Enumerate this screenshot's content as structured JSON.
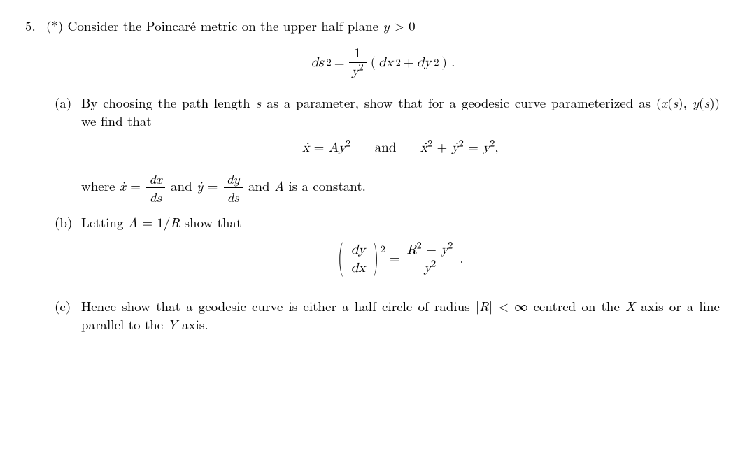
{
  "problem": {
    "number": "5.",
    "star": "(*)",
    "intro": "Consider the Poincaré metric on the upper half plane",
    "intro_cond_html": "<span class='ital'>y</span> &gt; 0",
    "metric_eq_html": "<span class='eqline'><span class='ital'>ds</span><sup>2</sup> = <span class='frac'><span class='num'>1</span><span class='den'><span class='ital'>y</span><sup>2</sup></span></span> (<span class='ital'>dx</span><sup>2</sup> + <span class='ital'>dy</span><sup>2</sup>) .</span>",
    "parts": {
      "a": {
        "label": "(a)",
        "text_html": "By choosing the path length <span class='ital'>s</span> as a parameter, show that for a geodesic curve parameterized as (<span class='ital'>x</span>(<span class='ital'>s</span>), <span class='ital'>y</span>(<span class='ital'>s</span>)) we find that",
        "eq_html": "<span class='ital'>ẋ</span> = <span class='ital'>Ay</span><sup>2</sup> <span class='gap'></span> and <span class='gap'></span> <span class='ital'>ẋ</span><sup>2</sup> + <span class='ital'>ẏ</span><sup>2</sup> = <span class='ital'>y</span><sup>2</sup>,",
        "where_html": "where <span class='ital'>ẋ</span> = <span class='frac'><span class='num'><span class='ital'>dx</span></span><span class='den'><span class='ital'>ds</span></span></span> and <span class='ital'>ẏ</span> = <span class='frac'><span class='num'><span class='ital'>dy</span></span><span class='den'><span class='ital'>ds</span></span></span> and <span class='ital'>A</span> is a constant."
      },
      "b": {
        "label": "(b)",
        "text_html": "Letting <span class='ital'>A</span> = 1/<span class='ital'>R</span> show that",
        "eq_html": "<span class='eqline'><span class='lp'>(</span><span class='frac'><span class='num'><span class='ital'>dy</span></span><span class='den'><span class='ital'>dx</span></span></span><span class='lp'>)</span><sup style='position:relative; top:-14px; left:-2px'>2</sup> = <span class='frac'><span class='num'><span class='ital'>R</span><sup>2</sup> − <span class='ital'>y</span><sup>2</sup></span><span class='den'><span class='ital'>y</span><sup>2</sup></span></span> .</span>"
      },
      "c": {
        "label": "(c)",
        "text_html": "Hence show that a geodesic curve is either a half circle of radius |<span class='ital'>R</span>| &lt; ∞ centred on the <span class='ital'>X</span> axis or a line parallel to the <span class='ital'>Y</span> axis."
      }
    }
  }
}
